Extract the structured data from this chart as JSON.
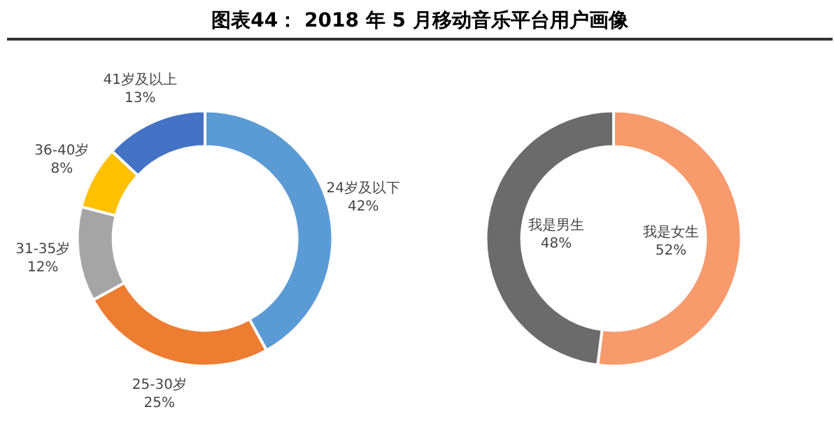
{
  "chart_data": [
    {
      "type": "donut",
      "title": "图表44：      2018 年 5 月移动音乐平台用户画像",
      "categories": [
        "24岁及以下",
        "25-30岁",
        "31-35岁",
        "36-40岁",
        "41岁及以上"
      ],
      "values": [
        42,
        25,
        12,
        8,
        13
      ],
      "colors": [
        "#5b9bd5",
        "#ed7d31",
        "#a5a5a5",
        "#ffc000",
        "#4472c4"
      ],
      "value_labels": [
        "42%",
        "25%",
        "12%",
        "8%",
        "13%"
      ]
    },
    {
      "type": "donut",
      "categories": [
        "我是女生",
        "我是男生"
      ],
      "values": [
        52,
        48
      ],
      "colors": [
        "#f79a6c",
        "#6b6b6b"
      ],
      "value_labels": [
        "52%",
        "48%"
      ]
    }
  ]
}
